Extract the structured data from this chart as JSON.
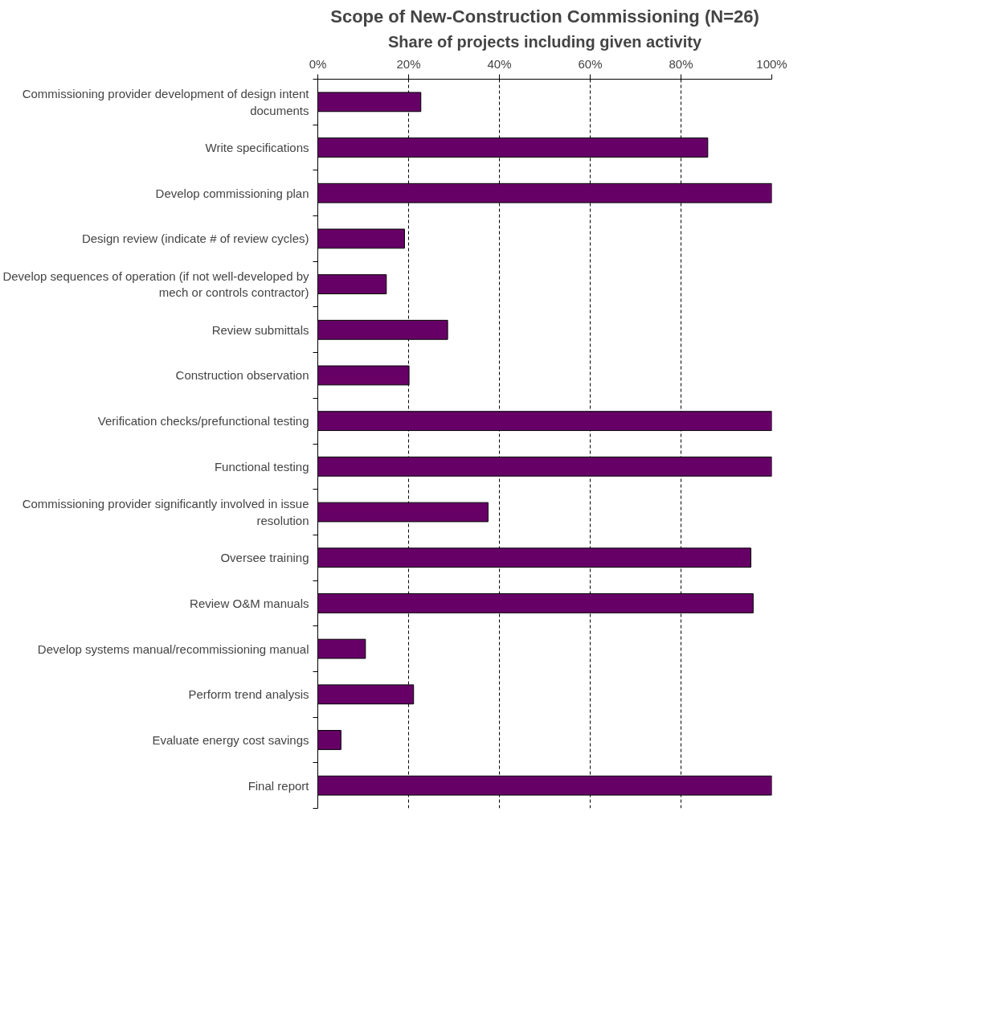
{
  "chart_data": {
    "type": "bar",
    "orientation": "horizontal",
    "title": "Scope of New-Construction Commissioning (N=26)",
    "xlabel": "Share of projects including given activity",
    "categories": [
      "Commissioning provider development of design intent documents",
      "Write specifications",
      "Develop commissioning plan",
      "Design review (indicate # of review cycles)",
      "Develop sequences of operation (if not well-developed by mech or controls contractor)",
      "Review submittals",
      "Construction observation",
      "Verification checks/prefunctional testing",
      "Functional testing",
      "Commissioning provider significantly involved in issue resolution",
      "Oversee training",
      "Review O&M manuals",
      "Develop systems manual/recommissioning manual",
      "Perform trend analysis",
      "Evaluate energy cost savings",
      "Final report"
    ],
    "values": [
      22.7,
      85.9,
      100,
      19.1,
      15.1,
      28.6,
      20.1,
      100,
      100,
      37.5,
      95.4,
      95.9,
      10.5,
      21.1,
      5.1,
      100
    ],
    "color": "#660066",
    "xlim": [
      0,
      100
    ],
    "xticks": [
      {
        "value": 0,
        "label": "0%"
      },
      {
        "value": 20,
        "label": "20%"
      },
      {
        "value": 40,
        "label": "40%"
      },
      {
        "value": 60,
        "label": "60%"
      },
      {
        "value": 80,
        "label": "80%"
      },
      {
        "value": 100,
        "label": "100%"
      }
    ],
    "grid": "x"
  }
}
